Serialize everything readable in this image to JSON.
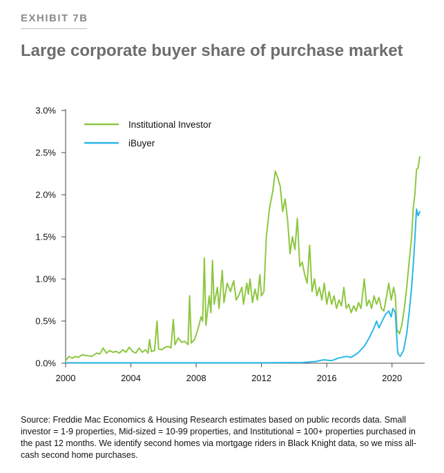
{
  "header": {
    "exhibit": "EXHIBIT 7B",
    "title": "Large corporate buyer share of purchase market"
  },
  "source_note": "Source: Freddie Mac Economics & Housing Research estimates based on public records data. Small investor = 1-9 properties, Mid-sized = 10-99 properties, and Institutional = 100+ properties purchased in the past 12 months. We identify second homes via mortgage riders in Black Knight data, so we miss all-cash second home purchases.",
  "colors": {
    "institutional": "#8dc63f",
    "ibuyer": "#29b6e8",
    "axis": "#444444"
  },
  "chart_data": {
    "type": "line",
    "title": "Large corporate buyer share of purchase market",
    "xlim": [
      2000,
      2022
    ],
    "ylim": [
      0,
      0.03
    ],
    "x_ticks": [
      2000,
      2004,
      2008,
      2012,
      2016,
      2020
    ],
    "x_tick_labels": [
      "2000",
      "2004",
      "2008",
      "2012",
      "2016",
      "2020"
    ],
    "y_ticks": [
      0,
      0.005,
      0.01,
      0.015,
      0.02,
      0.025,
      0.03
    ],
    "y_tick_labels": [
      "0.0%",
      "0.5%",
      "1.0%",
      "1.5%",
      "2.0%",
      "2.5%",
      "3.0%"
    ],
    "legend_position": "top-left",
    "series": [
      {
        "name": "Institutional Investor",
        "color": "#8dc63f",
        "points": [
          [
            2000.0,
            0.0003
          ],
          [
            2000.2,
            0.0008
          ],
          [
            2000.4,
            0.0006
          ],
          [
            2000.6,
            0.0008
          ],
          [
            2000.8,
            0.0007
          ],
          [
            2001.0,
            0.001
          ],
          [
            2001.3,
            0.0009
          ],
          [
            2001.6,
            0.0008
          ],
          [
            2001.9,
            0.0012
          ],
          [
            2002.1,
            0.0011
          ],
          [
            2002.3,
            0.0018
          ],
          [
            2002.5,
            0.0012
          ],
          [
            2002.7,
            0.0015
          ],
          [
            2002.9,
            0.0013
          ],
          [
            2003.1,
            0.0014
          ],
          [
            2003.3,
            0.0012
          ],
          [
            2003.5,
            0.0016
          ],
          [
            2003.7,
            0.0013
          ],
          [
            2003.9,
            0.0019
          ],
          [
            2004.1,
            0.0014
          ],
          [
            2004.3,
            0.0012
          ],
          [
            2004.5,
            0.0018
          ],
          [
            2004.7,
            0.0013
          ],
          [
            2004.9,
            0.0016
          ],
          [
            2005.05,
            0.0012
          ],
          [
            2005.15,
            0.0028
          ],
          [
            2005.25,
            0.0014
          ],
          [
            2005.45,
            0.0015
          ],
          [
            2005.6,
            0.005
          ],
          [
            2005.7,
            0.0017
          ],
          [
            2005.9,
            0.0016
          ],
          [
            2006.1,
            0.0019
          ],
          [
            2006.3,
            0.002
          ],
          [
            2006.45,
            0.0018
          ],
          [
            2006.6,
            0.0052
          ],
          [
            2006.7,
            0.0022
          ],
          [
            2006.9,
            0.003
          ],
          [
            2007.1,
            0.0025
          ],
          [
            2007.3,
            0.0026
          ],
          [
            2007.5,
            0.0022
          ],
          [
            2007.6,
            0.008
          ],
          [
            2007.7,
            0.0024
          ],
          [
            2007.9,
            0.0028
          ],
          [
            2008.1,
            0.004
          ],
          [
            2008.3,
            0.0055
          ],
          [
            2008.4,
            0.005
          ],
          [
            2008.5,
            0.0125
          ],
          [
            2008.6,
            0.0045
          ],
          [
            2008.8,
            0.008
          ],
          [
            2008.9,
            0.006
          ],
          [
            2009.0,
            0.0122
          ],
          [
            2009.1,
            0.007
          ],
          [
            2009.3,
            0.009
          ],
          [
            2009.4,
            0.0065
          ],
          [
            2009.6,
            0.011
          ],
          [
            2009.7,
            0.0072
          ],
          [
            2009.9,
            0.0095
          ],
          [
            2010.1,
            0.0085
          ],
          [
            2010.3,
            0.0098
          ],
          [
            2010.45,
            0.0075
          ],
          [
            2010.6,
            0.008
          ],
          [
            2010.8,
            0.009
          ],
          [
            2010.9,
            0.007
          ],
          [
            2011.1,
            0.0095
          ],
          [
            2011.2,
            0.0082
          ],
          [
            2011.3,
            0.01
          ],
          [
            2011.45,
            0.0072
          ],
          [
            2011.6,
            0.0088
          ],
          [
            2011.75,
            0.0075
          ],
          [
            2011.9,
            0.0105
          ],
          [
            2012.0,
            0.008
          ],
          [
            2012.15,
            0.0085
          ],
          [
            2012.3,
            0.015
          ],
          [
            2012.5,
            0.0185
          ],
          [
            2012.7,
            0.0205
          ],
          [
            2012.85,
            0.0228
          ],
          [
            2013.0,
            0.022
          ],
          [
            2013.15,
            0.021
          ],
          [
            2013.3,
            0.018
          ],
          [
            2013.45,
            0.0195
          ],
          [
            2013.6,
            0.017
          ],
          [
            2013.75,
            0.013
          ],
          [
            2013.9,
            0.015
          ],
          [
            2014.05,
            0.0135
          ],
          [
            2014.2,
            0.0172
          ],
          [
            2014.35,
            0.0115
          ],
          [
            2014.5,
            0.012
          ],
          [
            2014.65,
            0.0105
          ],
          [
            2014.8,
            0.0095
          ],
          [
            2014.95,
            0.014
          ],
          [
            2015.1,
            0.0085
          ],
          [
            2015.25,
            0.01
          ],
          [
            2015.4,
            0.008
          ],
          [
            2015.55,
            0.009
          ],
          [
            2015.7,
            0.0075
          ],
          [
            2015.85,
            0.0095
          ],
          [
            2016.0,
            0.007
          ],
          [
            2016.15,
            0.0085
          ],
          [
            2016.3,
            0.007
          ],
          [
            2016.45,
            0.008
          ],
          [
            2016.6,
            0.0065
          ],
          [
            2016.75,
            0.0075
          ],
          [
            2016.9,
            0.0068
          ],
          [
            2017.05,
            0.009
          ],
          [
            2017.2,
            0.0065
          ],
          [
            2017.35,
            0.007
          ],
          [
            2017.5,
            0.006
          ],
          [
            2017.65,
            0.0068
          ],
          [
            2017.8,
            0.0062
          ],
          [
            2017.95,
            0.0072
          ],
          [
            2018.1,
            0.0065
          ],
          [
            2018.3,
            0.01
          ],
          [
            2018.45,
            0.0068
          ],
          [
            2018.6,
            0.0075
          ],
          [
            2018.75,
            0.0065
          ],
          [
            2018.9,
            0.008
          ],
          [
            2019.05,
            0.007
          ],
          [
            2019.2,
            0.0078
          ],
          [
            2019.35,
            0.0065
          ],
          [
            2019.5,
            0.0062
          ],
          [
            2019.65,
            0.0078
          ],
          [
            2019.8,
            0.0095
          ],
          [
            2019.95,
            0.0075
          ],
          [
            2020.1,
            0.009
          ],
          [
            2020.2,
            0.008
          ],
          [
            2020.3,
            0.004
          ],
          [
            2020.45,
            0.0035
          ],
          [
            2020.6,
            0.0045
          ],
          [
            2020.75,
            0.0065
          ],
          [
            2020.9,
            0.009
          ],
          [
            2021.05,
            0.012
          ],
          [
            2021.2,
            0.015
          ],
          [
            2021.3,
            0.0185
          ],
          [
            2021.4,
            0.02
          ],
          [
            2021.5,
            0.023
          ],
          [
            2021.6,
            0.0232
          ],
          [
            2021.7,
            0.0245
          ]
        ]
      },
      {
        "name": "iBuyer",
        "color": "#29b6e8",
        "points": [
          [
            2000.0,
            5e-05
          ],
          [
            2004.0,
            5e-05
          ],
          [
            2008.0,
            5e-05
          ],
          [
            2012.0,
            5e-05
          ],
          [
            2014.5,
            8e-05
          ],
          [
            2015.3,
            0.0002
          ],
          [
            2015.8,
            0.0004
          ],
          [
            2016.3,
            0.0003
          ],
          [
            2016.7,
            0.0006
          ],
          [
            2017.2,
            0.0008
          ],
          [
            2017.5,
            0.0007
          ],
          [
            2017.9,
            0.0012
          ],
          [
            2018.3,
            0.002
          ],
          [
            2018.6,
            0.003
          ],
          [
            2018.9,
            0.0042
          ],
          [
            2019.05,
            0.005
          ],
          [
            2019.2,
            0.0042
          ],
          [
            2019.4,
            0.005
          ],
          [
            2019.6,
            0.0058
          ],
          [
            2019.8,
            0.0062
          ],
          [
            2019.95,
            0.0055
          ],
          [
            2020.05,
            0.0065
          ],
          [
            2020.2,
            0.006
          ],
          [
            2020.35,
            0.0012
          ],
          [
            2020.5,
            0.0008
          ],
          [
            2020.7,
            0.0015
          ],
          [
            2020.9,
            0.0035
          ],
          [
            2021.05,
            0.006
          ],
          [
            2021.2,
            0.009
          ],
          [
            2021.35,
            0.013
          ],
          [
            2021.5,
            0.0183
          ],
          [
            2021.6,
            0.0175
          ],
          [
            2021.7,
            0.018
          ]
        ]
      }
    ]
  }
}
